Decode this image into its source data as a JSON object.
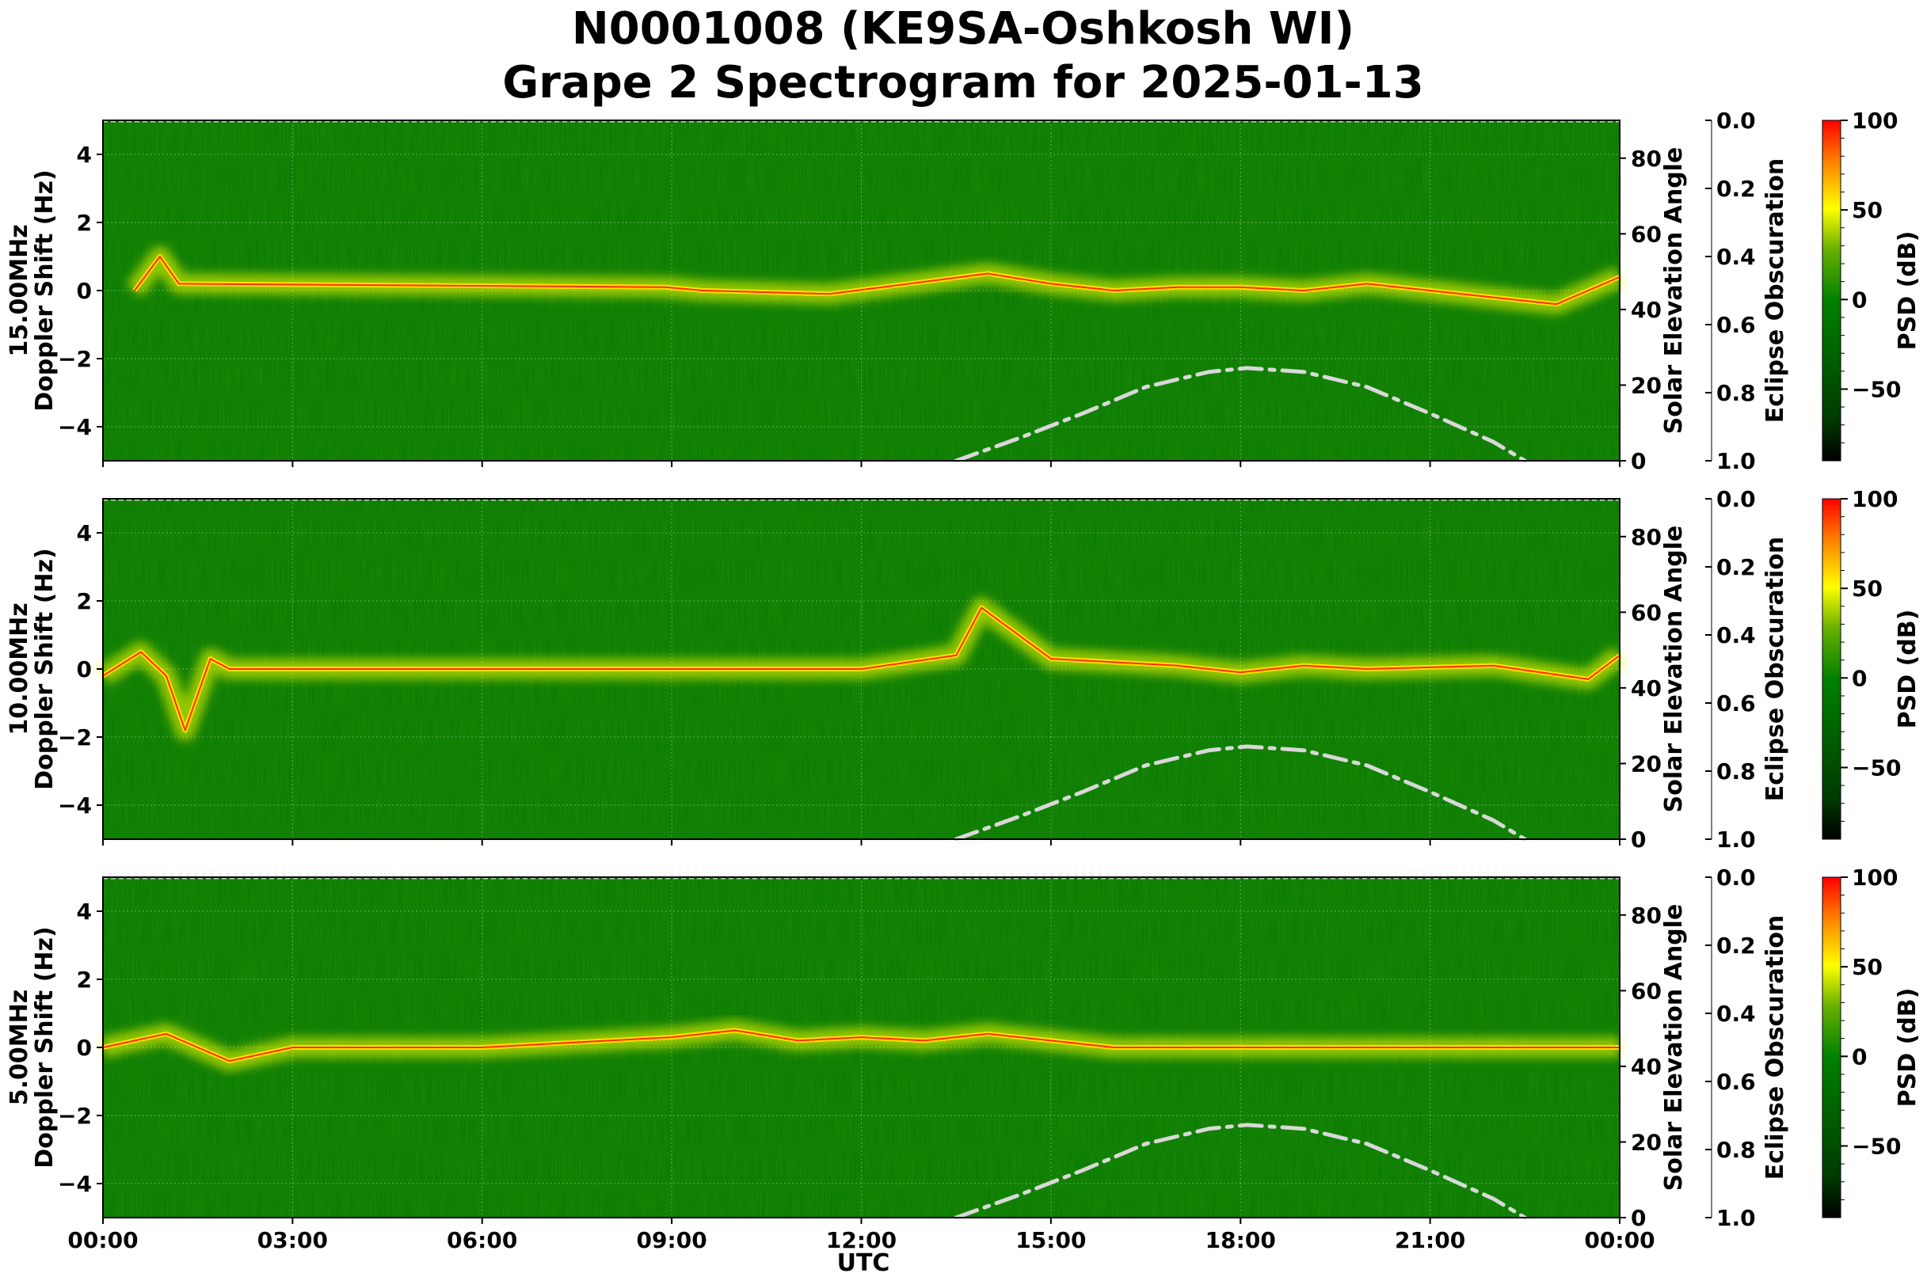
{
  "figure": {
    "title_line1": "N0001008 (KE9SA-Oshkosh WI)",
    "title_line2": "Grape 2 Spectrogram for 2025-01-13",
    "xlabel": "UTC"
  },
  "chart_data": {
    "type": "heatmap",
    "x_ticks": [
      "00:00",
      "03:00",
      "06:00",
      "09:00",
      "12:00",
      "15:00",
      "18:00",
      "21:00",
      "00:00"
    ],
    "y_ticks": [
      "4",
      "2",
      "0",
      "−2",
      "−4"
    ],
    "y_tick_values": [
      4,
      2,
      0,
      -2,
      -4
    ],
    "ylim": [
      -5,
      5
    ],
    "x_range_hours": [
      0,
      24
    ],
    "right_axis": {
      "label": "Solar Elevation Angle",
      "ticks": [
        "80",
        "60",
        "40",
        "20",
        "0"
      ],
      "tick_values": [
        80,
        60,
        40,
        20,
        0
      ],
      "range": [
        0,
        90
      ]
    },
    "eclipse_axis": {
      "label": "Eclipse Obscuration",
      "ticks": [
        "0.0",
        "0.2",
        "0.4",
        "0.6",
        "0.8",
        "1.0"
      ],
      "tick_values": [
        0,
        0.2,
        0.4,
        0.6,
        0.8,
        1.0
      ],
      "range": [
        0,
        1
      ]
    },
    "colorbar": {
      "label": "PSD (dB)",
      "ticks": [
        "100",
        "50",
        "0",
        "−50"
      ],
      "tick_values": [
        100,
        50,
        0,
        -50
      ],
      "range": [
        -90,
        100
      ],
      "colors": [
        "#000000",
        "#006400",
        "#008000",
        "#ffff00",
        "#ff0000"
      ]
    },
    "panels": [
      {
        "label": "15.00MHz",
        "ylabel": "Doppler Shift (Hz)",
        "solar_elevation": {
          "hour": [
            13.5,
            14.5,
            15.5,
            16.5,
            17.5,
            18.1,
            19,
            20,
            21,
            22,
            22.5
          ],
          "deg": [
            0,
            6,
            12.5,
            19.5,
            23.5,
            24.5,
            23.5,
            19.5,
            12.5,
            5,
            0
          ]
        },
        "doppler_trace": {
          "hour": [
            0.5,
            0.9,
            1.2,
            8.9,
            9.5,
            11.5,
            14,
            15,
            16,
            17,
            18,
            19,
            20,
            21,
            22,
            23,
            24
          ],
          "hz": [
            0,
            1.0,
            0.2,
            0.1,
            0,
            -0.1,
            0.5,
            0.2,
            0,
            0.1,
            0.1,
            0,
            0.2,
            0,
            -0.2,
            -0.4,
            0.4
          ]
        }
      },
      {
        "label": "10.00MHz",
        "ylabel": "Doppler Shift (Hz)",
        "solar_elevation": {
          "hour": [
            13.5,
            14.5,
            15.5,
            16.5,
            17.5,
            18.1,
            19,
            20,
            21,
            22,
            22.5
          ],
          "deg": [
            0,
            6,
            12.5,
            19.5,
            23.5,
            24.5,
            23.5,
            19.5,
            12.5,
            5,
            0
          ]
        },
        "doppler_trace": {
          "hour": [
            0,
            0.6,
            1.0,
            1.3,
            1.7,
            2.0,
            8.5,
            12,
            13.5,
            13.9,
            15,
            17,
            18,
            19,
            20,
            22,
            23.5,
            24
          ],
          "hz": [
            -0.2,
            0.5,
            -0.2,
            -1.8,
            0.3,
            0,
            0,
            0,
            0.4,
            1.8,
            0.3,
            0.1,
            -0.1,
            0.1,
            0,
            0.1,
            -0.3,
            0.4
          ]
        }
      },
      {
        "label": "5.00MHz",
        "ylabel": "Doppler Shift (Hz)",
        "solar_elevation": {
          "hour": [
            13.5,
            14.5,
            15.5,
            16.5,
            17.5,
            18.1,
            19,
            20,
            21,
            22,
            22.5
          ],
          "deg": [
            0,
            6,
            12.5,
            19.5,
            23.5,
            24.5,
            23.5,
            19.5,
            12.5,
            5,
            0
          ]
        },
        "doppler_trace": {
          "hour": [
            0,
            1,
            2,
            3,
            6,
            9,
            10,
            11,
            12,
            13,
            14,
            15,
            16,
            24
          ],
          "hz": [
            0,
            0.4,
            -0.4,
            0,
            0,
            0.3,
            0.5,
            0.2,
            0.3,
            0.2,
            0.4,
            0.2,
            0,
            0
          ]
        }
      }
    ],
    "grid": true
  }
}
